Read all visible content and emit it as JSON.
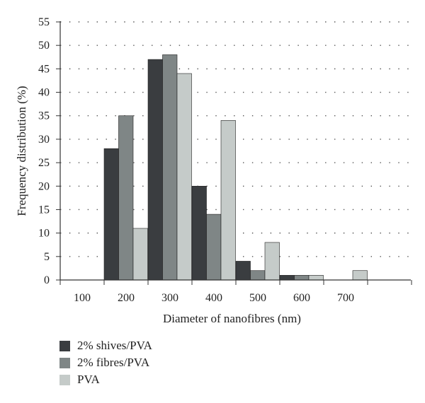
{
  "chart_data": {
    "type": "bar",
    "categories": [
      "100",
      "200",
      "300",
      "400",
      "500",
      "600",
      "700"
    ],
    "series": [
      {
        "name": "2% shives/PVA",
        "color": "#3a3d40",
        "values": [
          0,
          28,
          47,
          20,
          4,
          1,
          0
        ]
      },
      {
        "name": "2% fibres/PVA",
        "color": "#7f8686",
        "values": [
          0,
          35,
          48,
          14,
          2,
          1,
          0
        ]
      },
      {
        "name": "PVA",
        "color": "#c5cbc9",
        "values": [
          0,
          11,
          44,
          34,
          8,
          1,
          2
        ]
      }
    ],
    "xlabel": "Diameter of nanofibres (nm)",
    "ylabel": "Frequency distribution (%)",
    "ylim": [
      0,
      55
    ],
    "yticks": [
      0,
      5,
      10,
      15,
      20,
      25,
      30,
      35,
      40,
      45,
      50,
      55
    ],
    "grid": "dotted horizontal",
    "legend_position": "bottom-left"
  }
}
